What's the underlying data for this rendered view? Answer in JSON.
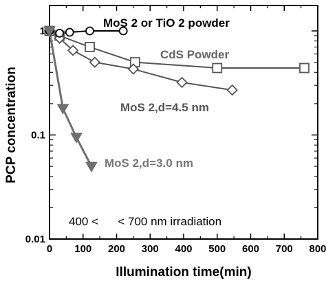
{
  "chart_data": {
    "type": "line",
    "xlabel": "Illumination time(min)",
    "ylabel": "PCP concentration",
    "xlim": [
      0,
      800
    ],
    "ylim": [
      0.01,
      1.5
    ],
    "y_scale": "log",
    "grid": false,
    "x_ticks": [
      "0",
      "100",
      "200",
      "300",
      "400",
      "500",
      "600",
      "700",
      "800"
    ],
    "y_ticks": [
      {
        "value": 1,
        "label": "1"
      },
      {
        "value": 0.1,
        "label": "0.1"
      },
      {
        "value": 0.01,
        "label": "0.01"
      }
    ],
    "series": [
      {
        "name": "MoS 2 or TiO 2 powder",
        "marker": "circle",
        "color": "#000000",
        "x": [
          0,
          30,
          60,
          120,
          220
        ],
        "y": [
          1.0,
          0.95,
          0.97,
          1.0,
          1.0
        ]
      },
      {
        "name": "CdS Powder",
        "marker": "square",
        "color": "#555555",
        "x": [
          0,
          30,
          120,
          255,
          500,
          760
        ],
        "y": [
          1.0,
          0.9,
          0.7,
          0.5,
          0.44,
          0.44
        ]
      },
      {
        "name": "MoS 2,d=4.5 nm",
        "marker": "diamond",
        "color": "#555555",
        "x": [
          0,
          30,
          70,
          135,
          250,
          395,
          545
        ],
        "y": [
          1.0,
          0.85,
          0.65,
          0.5,
          0.43,
          0.32,
          0.27
        ]
      },
      {
        "name": "MoS 2,d=3.0 nm",
        "marker": "triangle-down",
        "color": "#707070",
        "x": [
          0,
          40,
          80,
          125
        ],
        "y": [
          1.0,
          0.18,
          0.095,
          0.05
        ]
      }
    ],
    "annotations": [
      {
        "id": "mos2-tio2",
        "text": "MoS 2 or TiO 2 powder",
        "color": "#000000"
      },
      {
        "id": "cds",
        "text": "CdS Powder",
        "color": "#666666"
      },
      {
        "id": "mos45",
        "text": "MoS 2,d=4.5 nm",
        "color": "#555555"
      },
      {
        "id": "mos30",
        "text": "MoS 2,d=3.0 nm",
        "color": "#777777"
      },
      {
        "id": "irr",
        "text": "400 <      < 700 nm irradiation",
        "color": "#000000"
      }
    ]
  }
}
